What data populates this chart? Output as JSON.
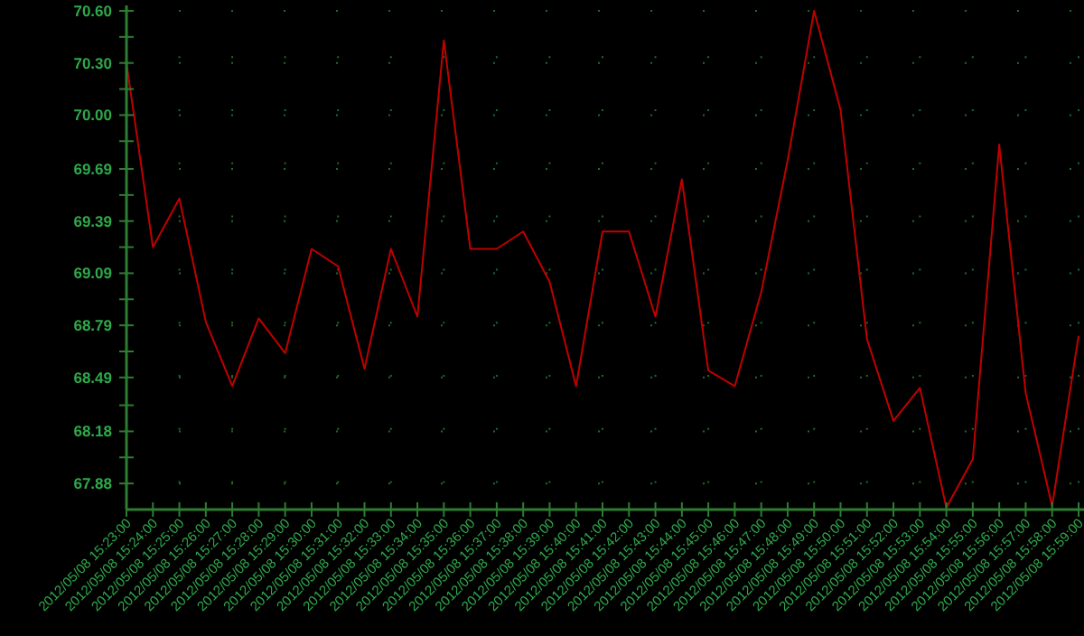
{
  "chart_data": {
    "type": "line",
    "categories": [
      "2012/05/08 15:23:00",
      "2012/05/08 15:24:00",
      "2012/05/08 15:25:00",
      "2012/05/08 15:26:00",
      "2012/05/08 15:27:00",
      "2012/05/08 15:28:00",
      "2012/05/08 15:29:00",
      "2012/05/08 15:30:00",
      "2012/05/08 15:31:00",
      "2012/05/08 15:32:00",
      "2012/05/08 15:33:00",
      "2012/05/08 15:34:00",
      "2012/05/08 15:35:00",
      "2012/05/08 15:36:00",
      "2012/05/08 15:37:00",
      "2012/05/08 15:38:00",
      "2012/05/08 15:39:00",
      "2012/05/08 15:40:00",
      "2012/05/08 15:41:00",
      "2012/05/08 15:42:00",
      "2012/05/08 15:43:00",
      "2012/05/08 15:44:00",
      "2012/05/08 15:45:00",
      "2012/05/08 15:46:00",
      "2012/05/08 15:47:00",
      "2012/05/08 15:48:00",
      "2012/05/08 15:49:00",
      "2012/05/08 15:50:00",
      "2012/05/08 15:51:00",
      "2012/05/08 15:52:00",
      "2012/05/08 15:53:00",
      "2012/05/08 15:54:00",
      "2012/05/08 15:55:00",
      "2012/05/08 15:56:00",
      "2012/05/08 15:57:00",
      "2012/05/08 15:58:00",
      "2012/05/08 15:59:00"
    ],
    "series": [
      {
        "color": "#c00000",
        "values": [
          70.3,
          69.24,
          69.52,
          68.81,
          68.44,
          68.83,
          68.63,
          69.23,
          69.13,
          68.54,
          69.23,
          68.84,
          70.43,
          69.23,
          69.23,
          69.33,
          69.04,
          68.44,
          69.33,
          69.33,
          68.84,
          69.63,
          68.53,
          68.44,
          68.98,
          69.74,
          70.6,
          70.03,
          68.71,
          68.24,
          68.43,
          67.74,
          68.02,
          69.83,
          68.4,
          67.75,
          68.73
        ]
      }
    ],
    "ylim": [
      67.73,
      70.6
    ],
    "yticks": [
      {
        "value": 67.88,
        "label": "67.88"
      },
      {
        "value": 68.03,
        "label": null
      },
      {
        "value": 68.18,
        "label": "68.18"
      },
      {
        "value": 68.33,
        "label": null
      },
      {
        "value": 68.49,
        "label": "68.49"
      },
      {
        "value": 68.64,
        "label": null
      },
      {
        "value": 68.79,
        "label": "68.79"
      },
      {
        "value": 68.94,
        "label": null
      },
      {
        "value": 69.09,
        "label": "69.09"
      },
      {
        "value": 69.24,
        "label": null
      },
      {
        "value": 69.39,
        "label": "69.39"
      },
      {
        "value": 69.54,
        "label": null
      },
      {
        "value": 69.69,
        "label": "69.69"
      },
      {
        "value": 69.85,
        "label": null
      },
      {
        "value": 70.0,
        "label": "70.00"
      },
      {
        "value": 70.15,
        "label": null
      },
      {
        "value": 70.3,
        "label": "70.30"
      },
      {
        "value": 70.45,
        "label": null
      },
      {
        "value": 70.6,
        "label": "70.60"
      }
    ],
    "grid": true,
    "line_style": "solid",
    "marker": "none"
  }
}
